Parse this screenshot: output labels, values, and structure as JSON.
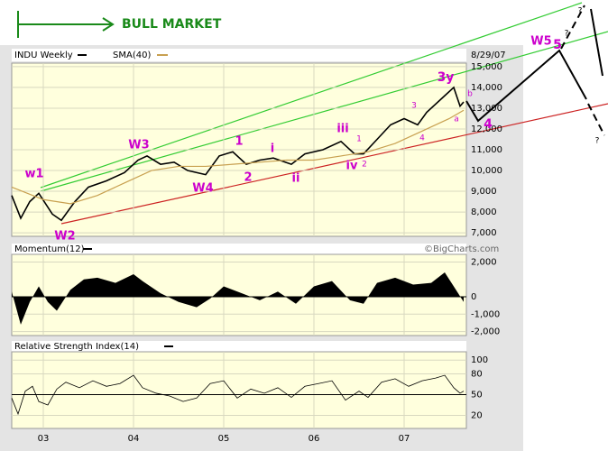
{
  "header": {
    "title": "BULL MARKET"
  },
  "chart_data": [
    {
      "type": "line",
      "title": "INDU Weekly",
      "date": "8/29/07",
      "series": [
        {
          "name": "INDU Weekly",
          "color": "#000000",
          "x": [
            2002.65,
            2002.75,
            2002.85,
            2002.95,
            2003.1,
            2003.2,
            2003.35,
            2003.5,
            2003.7,
            2003.9,
            2004.05,
            2004.15,
            2004.3,
            2004.45,
            2004.6,
            2004.8,
            2004.95,
            2005.1,
            2005.25,
            2005.4,
            2005.55,
            2005.75,
            2005.9,
            2006.1,
            2006.3,
            2006.45,
            2006.55,
            2006.7,
            2006.85,
            2007.0,
            2007.15,
            2007.25,
            2007.45,
            2007.55,
            2007.62,
            2007.66
          ],
          "values": [
            8800,
            7700,
            8500,
            8900,
            7900,
            7600,
            8500,
            9200,
            9500,
            9900,
            10500,
            10700,
            10300,
            10400,
            10000,
            9800,
            10700,
            10900,
            10300,
            10500,
            10600,
            10300,
            10800,
            11000,
            11400,
            10800,
            10800,
            11500,
            12200,
            12500,
            12200,
            12800,
            13600,
            14000,
            13100,
            13300
          ]
        },
        {
          "name": "SMA(40)",
          "color": "#c8a050",
          "x": [
            2002.65,
            2003.0,
            2003.3,
            2003.6,
            2003.9,
            2004.2,
            2004.5,
            2004.8,
            2005.1,
            2005.4,
            2005.7,
            2006.0,
            2006.3,
            2006.6,
            2006.9,
            2007.2,
            2007.5,
            2007.66
          ],
          "values": [
            9200,
            8600,
            8400,
            8800,
            9400,
            10000,
            10200,
            10200,
            10300,
            10400,
            10500,
            10500,
            10700,
            10900,
            11300,
            11900,
            12500,
            12900
          ]
        }
      ],
      "xlim": [
        2002.65,
        2007.69
      ],
      "ylim": [
        6830,
        15170
      ],
      "yticks": [
        {
          "value": 7000,
          "label": "7,000"
        },
        {
          "value": 8000,
          "label": "8,000"
        },
        {
          "value": 9000,
          "label": "9,000"
        },
        {
          "value": 10000,
          "label": "10,000"
        },
        {
          "value": 11000,
          "label": "11,000"
        },
        {
          "value": 12000,
          "label": "12,000"
        },
        {
          "value": 13000,
          "label": "13,000"
        },
        {
          "value": 14000,
          "label": "14,000"
        },
        {
          "value": 15000,
          "label": "15,000"
        }
      ],
      "annotations": [
        "w1",
        "W2",
        "W3",
        "W4",
        "1",
        "2",
        "i",
        "ii",
        "iii",
        "iv",
        "1",
        "2",
        "3",
        "4",
        "3y",
        "a",
        "b",
        "4",
        "W5",
        "5",
        "?",
        "?",
        "?"
      ],
      "source": "©BigCharts.com"
    },
    {
      "type": "area",
      "title": "Momentum(12)",
      "color": "#000000",
      "x": [
        2002.65,
        2002.75,
        2002.85,
        2002.95,
        2003.05,
        2003.15,
        2003.3,
        2003.45,
        2003.6,
        2003.8,
        2004.0,
        2004.1,
        2004.3,
        2004.5,
        2004.7,
        2004.85,
        2005.0,
        2005.2,
        2005.4,
        2005.6,
        2005.8,
        2006.0,
        2006.2,
        2006.4,
        2006.55,
        2006.7,
        2006.9,
        2007.1,
        2007.3,
        2007.45,
        2007.55,
        2007.66
      ],
      "values": [
        300,
        -1600,
        -300,
        600,
        -300,
        -800,
        400,
        1000,
        1100,
        800,
        1300,
        900,
        200,
        -300,
        -600,
        -100,
        600,
        200,
        -200,
        300,
        -400,
        600,
        900,
        -200,
        -400,
        800,
        1100,
        700,
        800,
        1400,
        600,
        -300
      ],
      "xlim": [
        2002.65,
        2007.69
      ],
      "ylim": [
        -2230,
        2440
      ],
      "yticks": [
        {
          "value": 2000,
          "label": "2,000"
        },
        0,
        {
          "value": -1000,
          "label": "-1,000"
        },
        {
          "value": -2000,
          "label": "-2,000"
        }
      ]
    },
    {
      "type": "line",
      "title": "Relative Strength Index(14)",
      "color": "#000000",
      "x": [
        2002.65,
        2002.72,
        2002.8,
        2002.88,
        2002.95,
        2003.05,
        2003.15,
        2003.25,
        2003.4,
        2003.55,
        2003.7,
        2003.85,
        2004.0,
        2004.1,
        2004.25,
        2004.4,
        2004.55,
        2004.7,
        2004.85,
        2005.0,
        2005.15,
        2005.3,
        2005.45,
        2005.6,
        2005.75,
        2005.9,
        2006.05,
        2006.2,
        2006.35,
        2006.5,
        2006.6,
        2006.75,
        2006.9,
        2007.05,
        2007.2,
        2007.35,
        2007.45,
        2007.55,
        2007.62,
        2007.66
      ],
      "values": [
        45,
        22,
        55,
        62,
        40,
        35,
        58,
        68,
        60,
        70,
        62,
        66,
        78,
        60,
        52,
        48,
        40,
        45,
        66,
        70,
        45,
        58,
        52,
        60,
        46,
        62,
        66,
        70,
        42,
        55,
        46,
        68,
        73,
        62,
        70,
        74,
        78,
        60,
        52,
        55
      ],
      "hline": 50,
      "xlim": [
        2002.65,
        2007.69
      ],
      "ylim": [
        1,
        112
      ],
      "yticks": [
        100,
        80,
        50,
        20
      ],
      "xticks": [
        {
          "value": 2003,
          "label": "03"
        },
        {
          "value": 2004,
          "label": "04"
        },
        {
          "value": 2005,
          "label": "05"
        },
        {
          "value": 2006,
          "label": "06"
        },
        {
          "value": 2007,
          "label": "07"
        }
      ]
    }
  ]
}
